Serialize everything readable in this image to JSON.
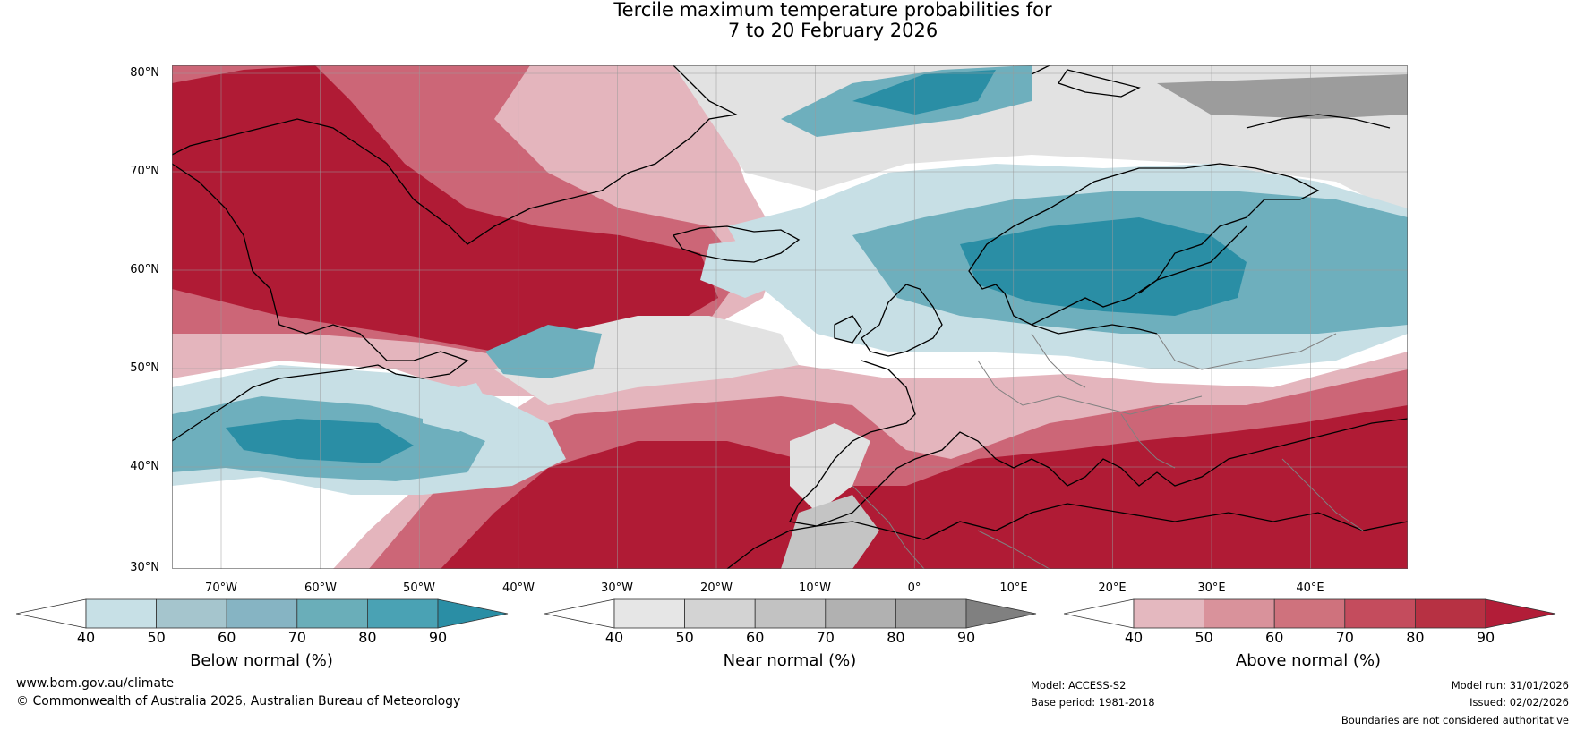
{
  "title": {
    "line1": "Tercile maximum temperature probabilities for",
    "line2": "7 to 20 February 2026"
  },
  "map": {
    "lat_labels": [
      "80°N",
      "70°N",
      "60°N",
      "50°N",
      "40°N",
      "30°N"
    ],
    "lon_labels": [
      "70°W",
      "60°W",
      "50°W",
      "40°W",
      "30°W",
      "20°W",
      "10°W",
      "0°",
      "10°E",
      "20°E",
      "30°E",
      "40°E"
    ],
    "colors": {
      "sea_land_white": "#ffffff",
      "above_90": "#b01b35",
      "above_80": "#c03649",
      "above_70": "#cc6677",
      "above_60": "#d78f99",
      "above_50": "#e4b5bd",
      "near_50": "#e2e2e2",
      "near_70": "#c4c4c4",
      "near_90": "#9c9c9c",
      "below_50": "#c7dfe5",
      "below_60": "#a4c6cf",
      "below_70": "#6eafbd",
      "below_80": "#4da1b4",
      "below_90": "#2a8ea5",
      "coast": "#000000",
      "border": "#808080",
      "grid": "#9a9a9a"
    }
  },
  "colorbars": [
    {
      "label": "Below normal (%)",
      "ticks": [
        "40",
        "50",
        "60",
        "70",
        "80",
        "90"
      ],
      "colors": [
        "#ffffff",
        "#c7e0e6",
        "#a5c5cd",
        "#86b4c3",
        "#6aaeb9",
        "#4aa2b4",
        "#2a8ea5"
      ]
    },
    {
      "label": "Near normal (%)",
      "ticks": [
        "40",
        "50",
        "60",
        "70",
        "80",
        "90"
      ],
      "colors": [
        "#ffffff",
        "#e6e6e6",
        "#d3d3d3",
        "#c2c2c2",
        "#b1b1b1",
        "#a0a0a0",
        "#808080"
      ]
    },
    {
      "label": "Above normal (%)",
      "ticks": [
        "40",
        "50",
        "60",
        "70",
        "80",
        "90"
      ],
      "colors": [
        "#ffffff",
        "#e4b8bf",
        "#d9929b",
        "#cf727d",
        "#c44c5d",
        "#b73143",
        "#b21d38"
      ]
    }
  ],
  "footer": {
    "website": "www.bom.gov.au/climate",
    "copyright": "© Commonwealth of Australia 2026, Australian Bureau of Meteorology",
    "model": "Model: ACCESS-S2",
    "base_period": "Base period: 1981-2018",
    "model_run": "Model run: 31/01/2026",
    "issued": "Issued: 02/02/2026",
    "disclaimer": "Boundaries are not considered authoritative"
  }
}
